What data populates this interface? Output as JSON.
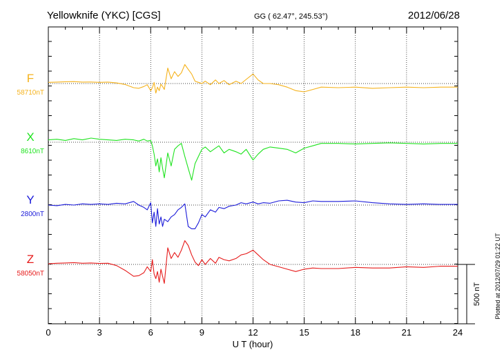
{
  "header": {
    "station": "Yellowknife (YKC)  [CGS]",
    "coords": "GG ( 62.47°, 245.53°)",
    "date": "2012/06/28"
  },
  "side_note": "Plotted at 2012/07/29 01:22 UT",
  "chart_data": {
    "type": "line",
    "xlabel": "U T (hour)",
    "xlim": [
      0,
      24
    ],
    "xticks": [
      0,
      3,
      6,
      9,
      12,
      15,
      18,
      21,
      24
    ],
    "scale_bar": {
      "label": "500 nT",
      "value": 500
    },
    "grid": true,
    "series": [
      {
        "name": "F",
        "baseline_label": "58710nT",
        "color": "#f5b21b",
        "x": [
          0,
          0.5,
          1,
          1.5,
          2,
          2.5,
          3,
          3.5,
          4,
          4.5,
          5,
          5.3,
          5.6,
          5.8,
          6,
          6.1,
          6.2,
          6.3,
          6.4,
          6.5,
          6.6,
          6.7,
          6.8,
          7,
          7.2,
          7.4,
          7.6,
          7.8,
          8,
          8.2,
          8.4,
          8.6,
          8.8,
          9,
          9.2,
          9.5,
          9.8,
          10,
          10.3,
          10.6,
          11,
          11.3,
          11.6,
          12,
          12.3,
          12.6,
          13,
          13.5,
          14,
          14.5,
          15,
          15.5,
          16,
          17,
          18,
          19,
          20,
          21,
          22,
          23,
          24
        ],
        "y": [
          10,
          12,
          15,
          16,
          12,
          13,
          10,
          12,
          5,
          -8,
          -35,
          -40,
          -25,
          -10,
          -60,
          -35,
          10,
          -80,
          -30,
          -60,
          -5,
          -25,
          -50,
          130,
          40,
          100,
          60,
          90,
          160,
          120,
          80,
          20,
          10,
          0,
          20,
          -10,
          30,
          0,
          25,
          -10,
          20,
          0,
          35,
          80,
          30,
          0,
          0,
          -10,
          -30,
          -60,
          -70,
          -50,
          -30,
          -35,
          -30,
          -40,
          -35,
          -30,
          -35,
          -30,
          -30
        ]
      },
      {
        "name": "X",
        "baseline_label": "8610nT",
        "color": "#1ee31e",
        "x": [
          0,
          0.5,
          1,
          1.5,
          2,
          2.5,
          3,
          3.5,
          4,
          4.5,
          5,
          5.3,
          5.6,
          5.8,
          6,
          6.1,
          6.2,
          6.3,
          6.4,
          6.5,
          6.6,
          6.7,
          6.8,
          7,
          7.2,
          7.4,
          7.6,
          7.8,
          8,
          8.2,
          8.4,
          8.6,
          8.8,
          9,
          9.2,
          9.5,
          9.8,
          10,
          10.3,
          10.6,
          11,
          11.3,
          11.6,
          12,
          12.3,
          12.6,
          13,
          13.5,
          14,
          14.5,
          15,
          15.5,
          16,
          17,
          18,
          19,
          20,
          21,
          22,
          23,
          24
        ],
        "y": [
          20,
          25,
          15,
          30,
          20,
          35,
          25,
          20,
          15,
          25,
          20,
          10,
          25,
          10,
          15,
          -30,
          -100,
          -200,
          -140,
          -250,
          -130,
          -220,
          -300,
          -90,
          -200,
          -60,
          -30,
          -10,
          -120,
          -220,
          -320,
          -180,
          -120,
          -60,
          -40,
          -80,
          -50,
          -30,
          -90,
          -60,
          -80,
          -100,
          -60,
          -150,
          -100,
          -60,
          -40,
          -50,
          -60,
          -90,
          -50,
          -30,
          -10,
          -10,
          -15,
          -10,
          -5,
          -10,
          -15,
          -10,
          -10
        ]
      },
      {
        "name": "Y",
        "baseline_label": "2800nT",
        "color": "#1a1ad9",
        "x": [
          0,
          0.5,
          1,
          1.5,
          2,
          2.5,
          3,
          3.5,
          4,
          4.5,
          5,
          5.3,
          5.6,
          5.8,
          6,
          6.1,
          6.2,
          6.3,
          6.4,
          6.5,
          6.6,
          6.7,
          6.8,
          7,
          7.2,
          7.4,
          7.6,
          7.8,
          8,
          8.2,
          8.4,
          8.6,
          8.8,
          9,
          9.2,
          9.5,
          9.8,
          10,
          10.3,
          10.6,
          11,
          11.3,
          11.6,
          12,
          12.3,
          12.6,
          13,
          13.5,
          14,
          14.5,
          15,
          15.5,
          16,
          17,
          18,
          19,
          20,
          21,
          22,
          23,
          24
        ],
        "y": [
          0,
          -5,
          5,
          0,
          10,
          5,
          10,
          5,
          15,
          10,
          30,
          0,
          -20,
          -40,
          20,
          -150,
          -60,
          -180,
          -30,
          -160,
          -100,
          -180,
          -120,
          -140,
          -100,
          -80,
          -40,
          -20,
          10,
          -180,
          -200,
          -200,
          -150,
          -80,
          -100,
          -40,
          -60,
          -20,
          -30,
          -10,
          0,
          20,
          10,
          25,
          10,
          20,
          15,
          35,
          40,
          25,
          20,
          35,
          30,
          30,
          35,
          20,
          10,
          5,
          10,
          5,
          5
        ]
      },
      {
        "name": "Z",
        "baseline_label": "58050nT",
        "color": "#e61919",
        "x": [
          0,
          0.5,
          1,
          1.5,
          2,
          2.5,
          3,
          3.5,
          4,
          4.5,
          5,
          5.3,
          5.6,
          5.8,
          6,
          6.1,
          6.2,
          6.3,
          6.4,
          6.5,
          6.6,
          6.7,
          6.8,
          7,
          7.2,
          7.4,
          7.6,
          7.8,
          8,
          8.2,
          8.4,
          8.6,
          8.8,
          9,
          9.2,
          9.5,
          9.8,
          10,
          10.3,
          10.6,
          11,
          11.3,
          11.6,
          12,
          12.3,
          12.6,
          13,
          13.5,
          14,
          14.5,
          15,
          15.5,
          16,
          17,
          18,
          19,
          20,
          21,
          22,
          23,
          24
        ],
        "y": [
          5,
          10,
          12,
          15,
          10,
          12,
          8,
          10,
          -10,
          -50,
          -100,
          -95,
          -70,
          -20,
          -60,
          40,
          -80,
          -120,
          -60,
          -150,
          -40,
          -100,
          -160,
          140,
          50,
          100,
          60,
          120,
          200,
          160,
          80,
          20,
          -10,
          40,
          0,
          50,
          10,
          60,
          40,
          30,
          50,
          80,
          90,
          120,
          80,
          40,
          0,
          -20,
          -40,
          -60,
          -40,
          -30,
          -35,
          -35,
          -25,
          -30,
          -30,
          -20,
          -25,
          -15,
          -15
        ]
      }
    ]
  }
}
